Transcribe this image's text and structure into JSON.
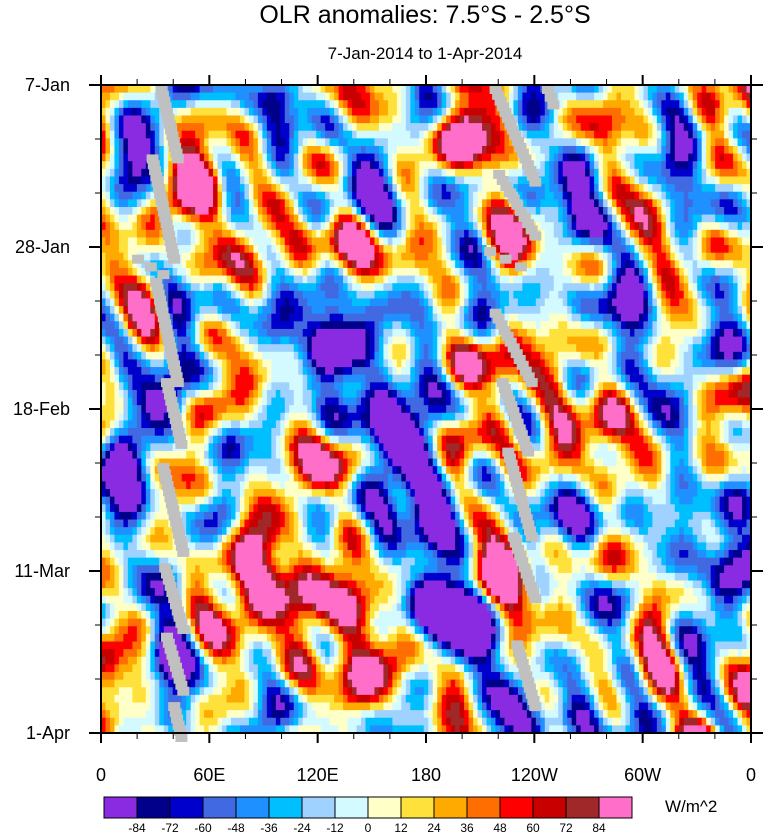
{
  "chart_data": {
    "type": "heatmap",
    "title": "OLR anomalies: 7.5°S - 2.5°S",
    "subtitle": "7-Jan-2014 to 1-Apr-2014",
    "x_label_ticks": [
      "0",
      "60E",
      "120E",
      "180",
      "120W",
      "60W",
      "0"
    ],
    "x_range": [
      0,
      360
    ],
    "x_tick_values": [
      0,
      60,
      120,
      180,
      240,
      300,
      360
    ],
    "y_label_ticks": [
      "7-Jan",
      "28-Jan",
      "18-Feb",
      "11-Mar",
      "1-Apr"
    ],
    "y_range_days": [
      0,
      84
    ],
    "y_tick_values": [
      0,
      21,
      42,
      63,
      84
    ],
    "colorbar": {
      "units": "W/m^2",
      "levels": [
        -84,
        -72,
        -60,
        -48,
        -36,
        -24,
        -12,
        0,
        12,
        24,
        36,
        48,
        60,
        72,
        84
      ],
      "level_labels": [
        "-84",
        "-72",
        "-60",
        "-48",
        "-36",
        "-24",
        "-12",
        "0",
        "12",
        "24",
        "36",
        "48",
        "60",
        "72",
        "84"
      ],
      "colors": [
        "#8a2be2",
        "#00008b",
        "#0000cd",
        "#4169e1",
        "#1e90ff",
        "#00bfff",
        "#a0d2ff",
        "#d2faff",
        "#ffffc8",
        "#ffe13c",
        "#ffaa00",
        "#ff6e00",
        "#ff0000",
        "#c80000",
        "#a02828",
        "#ff6ec8"
      ],
      "missing_color": "#c0c0c0"
    },
    "approx_features": {
      "grid_resolution": {
        "nx": 145,
        "ny": 85
      },
      "anomaly_samples": [
        {
          "lon": 30,
          "day": 5,
          "value": -40
        },
        {
          "lon": 35,
          "day": 38,
          "value": -65
        },
        {
          "lon": 45,
          "day": 60,
          "value": -50
        },
        {
          "lon": 75,
          "day": 10,
          "value": 55
        },
        {
          "lon": 95,
          "day": 20,
          "value": 50
        },
        {
          "lon": 100,
          "day": 53,
          "value": 55
        },
        {
          "lon": 90,
          "day": 66,
          "value": 50
        },
        {
          "lon": 95,
          "day": 14,
          "value": -55
        },
        {
          "lon": 120,
          "day": 42,
          "value": -50
        },
        {
          "lon": 150,
          "day": 8,
          "value": -50
        },
        {
          "lon": 150,
          "day": 35,
          "value": -45
        },
        {
          "lon": 160,
          "day": 52,
          "value": -70
        },
        {
          "lon": 150,
          "day": 75,
          "value": 55
        },
        {
          "lon": 180,
          "day": 50,
          "value": -65
        },
        {
          "lon": 185,
          "day": 67,
          "value": -85
        },
        {
          "lon": 120,
          "day": 70,
          "value": 45
        },
        {
          "lon": 200,
          "day": 10,
          "value": 25
        },
        {
          "lon": 220,
          "day": 40,
          "value": 22
        },
        {
          "lon": 230,
          "day": 65,
          "value": 20
        },
        {
          "lon": 290,
          "day": 50,
          "value": -32
        },
        {
          "lon": 310,
          "day": 30,
          "value": -38
        },
        {
          "lon": 320,
          "day": 70,
          "value": -30
        },
        {
          "lon": 345,
          "day": 60,
          "value": -20
        },
        {
          "lon": 340,
          "day": 15,
          "value": 12
        }
      ],
      "missing_streaks": [
        {
          "lon_start": 33,
          "day_start": 0,
          "lon_end": 42,
          "day_end": 9
        },
        {
          "lon_start": 28,
          "day_start": 9,
          "lon_end": 40,
          "day_end": 22
        },
        {
          "lon_start": 20,
          "day_start": 22,
          "lon_end": 34,
          "day_end": 24
        },
        {
          "lon_start": 30,
          "day_start": 25,
          "lon_end": 42,
          "day_end": 38
        },
        {
          "lon_start": 36,
          "day_start": 38,
          "lon_end": 44,
          "day_end": 46
        },
        {
          "lon_start": 34,
          "day_start": 49,
          "lon_end": 45,
          "day_end": 60
        },
        {
          "lon_start": 35,
          "day_start": 62,
          "lon_end": 45,
          "day_end": 70
        },
        {
          "lon_start": 36,
          "day_start": 71,
          "lon_end": 45,
          "day_end": 78
        },
        {
          "lon_start": 40,
          "day_start": 80,
          "lon_end": 44,
          "day_end": 84
        },
        {
          "lon_start": 218,
          "day_start": 0,
          "lon_end": 240,
          "day_end": 12
        },
        {
          "lon_start": 220,
          "day_start": 11,
          "lon_end": 240,
          "day_end": 19
        },
        {
          "lon_start": 215,
          "day_start": 21,
          "lon_end": 232,
          "day_end": 23
        },
        {
          "lon_start": 218,
          "day_start": 29,
          "lon_end": 238,
          "day_end": 38
        },
        {
          "lon_start": 222,
          "day_start": 38,
          "lon_end": 236,
          "day_end": 47
        },
        {
          "lon_start": 225,
          "day_start": 47,
          "lon_end": 238,
          "day_end": 58
        },
        {
          "lon_start": 228,
          "day_start": 58,
          "lon_end": 240,
          "day_end": 66
        },
        {
          "lon_start": 230,
          "day_start": 72,
          "lon_end": 240,
          "day_end": 80
        },
        {
          "lon_start": 247,
          "day_start": 0,
          "lon_end": 250,
          "day_end": 2
        }
      ]
    }
  }
}
